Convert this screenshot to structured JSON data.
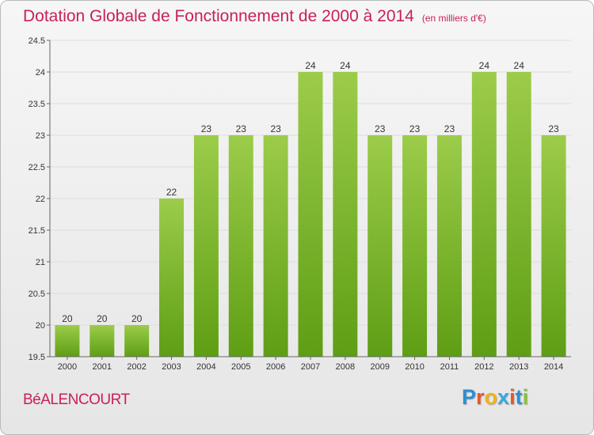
{
  "title": "Dotation Globale de Fonctionnement de 2000 à 2014",
  "subtitle": "(en milliers d'€)",
  "commune": "BéALENCOURT",
  "logo": {
    "letters": [
      "P",
      "r",
      "o",
      "x",
      "i",
      "t",
      "i"
    ],
    "colors": [
      "#2a8fd3",
      "#e8562a",
      "#f0b21a",
      "#38a8de",
      "#e8562a",
      "#2a8fd3",
      "#8ac13b"
    ]
  },
  "colors": {
    "title": "#c8205a",
    "bar_top": "#9ccc4a",
    "bar_bottom": "#5e9e14",
    "grid": "#dddddd"
  },
  "chart_data": {
    "type": "bar",
    "title": "Dotation Globale de Fonctionnement de 2000 à 2014",
    "subtitle": "(en milliers d'€)",
    "categories": [
      "2000",
      "2001",
      "2002",
      "2003",
      "2004",
      "2005",
      "2006",
      "2007",
      "2008",
      "2009",
      "2010",
      "2011",
      "2012",
      "2013",
      "2014"
    ],
    "values": [
      20,
      20,
      20,
      22,
      23,
      23,
      23,
      24,
      24,
      23,
      23,
      23,
      24,
      24,
      23
    ],
    "ylim": [
      19.5,
      24.5
    ],
    "yticks": [
      "19.5",
      "20",
      "20.5",
      "21",
      "21.5",
      "22",
      "22.5",
      "23",
      "23.5",
      "24",
      "24.5"
    ],
    "grid": true,
    "legend": "none"
  }
}
